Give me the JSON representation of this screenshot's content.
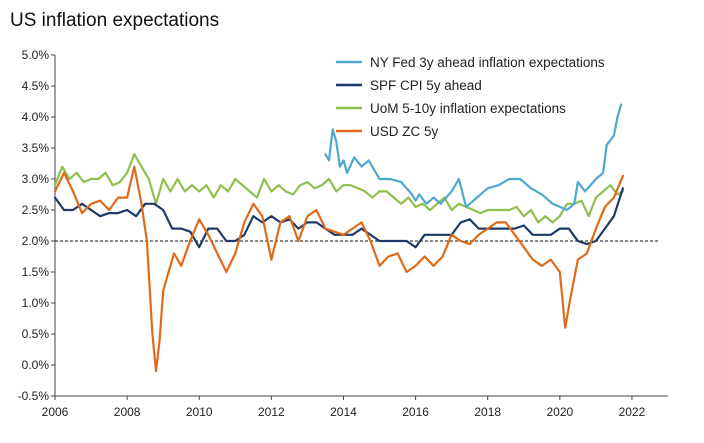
{
  "chart_data": {
    "type": "line",
    "title": "US inflation expectations",
    "xlabel": "",
    "ylabel": "",
    "xlim": [
      2006,
      2023
    ],
    "ylim": [
      -0.5,
      5.0
    ],
    "x_ticks": [
      2006,
      2008,
      2010,
      2012,
      2014,
      2016,
      2018,
      2020,
      2022
    ],
    "y_ticks": [
      "-0.5%",
      "0.0%",
      "0.5%",
      "1.0%",
      "1.5%",
      "2.0%",
      "2.5%",
      "3.0%",
      "3.5%",
      "4.0%",
      "4.5%",
      "5.0%"
    ],
    "reference_line": 2.0,
    "grid": false,
    "legend_position": "top-right",
    "series": [
      {
        "name": "NY Fed 3y ahead inflation expectations",
        "color": "#4fa8cf",
        "x": [
          2013.5,
          2013.6,
          2013.7,
          2013.8,
          2013.9,
          2014.0,
          2014.1,
          2014.3,
          2014.5,
          2014.7,
          2015.0,
          2015.3,
          2015.6,
          2015.9,
          2016.0,
          2016.1,
          2016.3,
          2016.5,
          2016.7,
          2017.0,
          2017.2,
          2017.4,
          2017.7,
          2018.0,
          2018.3,
          2018.6,
          2018.9,
          2019.2,
          2019.5,
          2019.8,
          2020.0,
          2020.2,
          2020.4,
          2020.5,
          2020.7,
          2021.0,
          2021.2,
          2021.3,
          2021.5,
          2021.6,
          2021.7
        ],
        "y": [
          3.4,
          3.3,
          3.8,
          3.6,
          3.2,
          3.3,
          3.1,
          3.35,
          3.2,
          3.3,
          3.0,
          3.0,
          2.95,
          2.75,
          2.65,
          2.75,
          2.6,
          2.7,
          2.6,
          2.8,
          3.0,
          2.55,
          2.7,
          2.85,
          2.9,
          3.0,
          3.0,
          2.85,
          2.75,
          2.6,
          2.55,
          2.5,
          2.6,
          2.95,
          2.8,
          3.0,
          3.1,
          3.55,
          3.7,
          4.0,
          4.2
        ]
      },
      {
        "name": "SPF CPI 5y ahead",
        "color": "#1f3a68",
        "x": [
          2006.0,
          2006.25,
          2006.5,
          2006.75,
          2007.0,
          2007.25,
          2007.5,
          2007.75,
          2008.0,
          2008.25,
          2008.5,
          2008.75,
          2009.0,
          2009.25,
          2009.5,
          2009.75,
          2010.0,
          2010.25,
          2010.5,
          2010.75,
          2011.0,
          2011.25,
          2011.5,
          2011.75,
          2012.0,
          2012.25,
          2012.5,
          2012.75,
          2013.0,
          2013.25,
          2013.5,
          2013.75,
          2014.0,
          2014.25,
          2014.5,
          2014.75,
          2015.0,
          2015.25,
          2015.5,
          2015.75,
          2016.0,
          2016.25,
          2016.5,
          2016.75,
          2017.0,
          2017.25,
          2017.5,
          2017.75,
          2018.0,
          2018.25,
          2018.5,
          2018.75,
          2019.0,
          2019.25,
          2019.5,
          2019.75,
          2020.0,
          2020.25,
          2020.5,
          2020.75,
          2021.0,
          2021.25,
          2021.5,
          2021.75
        ],
        "y": [
          2.7,
          2.5,
          2.5,
          2.6,
          2.5,
          2.4,
          2.45,
          2.45,
          2.5,
          2.4,
          2.6,
          2.6,
          2.5,
          2.2,
          2.2,
          2.15,
          1.9,
          2.2,
          2.2,
          2.0,
          2.0,
          2.1,
          2.4,
          2.3,
          2.4,
          2.3,
          2.35,
          2.2,
          2.3,
          2.3,
          2.2,
          2.1,
          2.1,
          2.1,
          2.2,
          2.1,
          2.0,
          2.0,
          2.0,
          2.0,
          1.9,
          2.1,
          2.1,
          2.1,
          2.1,
          2.3,
          2.35,
          2.2,
          2.2,
          2.2,
          2.2,
          2.2,
          2.25,
          2.1,
          2.1,
          2.1,
          2.2,
          2.2,
          2.0,
          1.95,
          2.0,
          2.2,
          2.4,
          2.85
        ]
      },
      {
        "name": "UoM 5-10y inflation expectations",
        "color": "#8fbf4e",
        "x": [
          2006.0,
          2006.2,
          2006.4,
          2006.6,
          2006.8,
          2007.0,
          2007.2,
          2007.4,
          2007.6,
          2007.8,
          2008.0,
          2008.2,
          2008.4,
          2008.6,
          2008.8,
          2009.0,
          2009.2,
          2009.4,
          2009.6,
          2009.8,
          2010.0,
          2010.2,
          2010.4,
          2010.6,
          2010.8,
          2011.0,
          2011.2,
          2011.4,
          2011.6,
          2011.8,
          2012.0,
          2012.2,
          2012.4,
          2012.6,
          2012.8,
          2013.0,
          2013.2,
          2013.4,
          2013.6,
          2013.8,
          2014.0,
          2014.2,
          2014.4,
          2014.6,
          2014.8,
          2015.0,
          2015.2,
          2015.4,
          2015.6,
          2015.8,
          2016.0,
          2016.2,
          2016.4,
          2016.6,
          2016.8,
          2017.0,
          2017.2,
          2017.4,
          2017.6,
          2017.8,
          2018.0,
          2018.2,
          2018.4,
          2018.6,
          2018.8,
          2019.0,
          2019.2,
          2019.4,
          2019.6,
          2019.8,
          2020.0,
          2020.2,
          2020.4,
          2020.6,
          2020.8,
          2021.0,
          2021.2,
          2021.4,
          2021.6,
          2021.75
        ],
        "y": [
          2.9,
          3.2,
          3.0,
          3.1,
          2.95,
          3.0,
          3.0,
          3.1,
          2.9,
          2.95,
          3.1,
          3.4,
          3.2,
          3.0,
          2.6,
          3.0,
          2.8,
          3.0,
          2.8,
          2.9,
          2.8,
          2.9,
          2.7,
          2.9,
          2.8,
          3.0,
          2.9,
          2.8,
          2.7,
          3.0,
          2.8,
          2.9,
          2.8,
          2.75,
          2.9,
          2.95,
          2.85,
          2.9,
          3.0,
          2.8,
          2.9,
          2.9,
          2.85,
          2.8,
          2.7,
          2.8,
          2.8,
          2.7,
          2.6,
          2.7,
          2.55,
          2.6,
          2.5,
          2.6,
          2.7,
          2.5,
          2.6,
          2.55,
          2.5,
          2.45,
          2.5,
          2.5,
          2.5,
          2.5,
          2.55,
          2.4,
          2.5,
          2.3,
          2.4,
          2.3,
          2.4,
          2.6,
          2.6,
          2.65,
          2.4,
          2.7,
          2.8,
          2.9,
          2.75,
          2.8
        ]
      },
      {
        "name": "USD ZC 5y",
        "color": "#e06a1a",
        "x": [
          2006.0,
          2006.25,
          2006.5,
          2006.75,
          2007.0,
          2007.25,
          2007.5,
          2007.75,
          2008.0,
          2008.2,
          2008.4,
          2008.55,
          2008.7,
          2008.8,
          2008.9,
          2009.0,
          2009.15,
          2009.3,
          2009.5,
          2009.75,
          2010.0,
          2010.25,
          2010.5,
          2010.75,
          2011.0,
          2011.25,
          2011.5,
          2011.75,
          2012.0,
          2012.25,
          2012.5,
          2012.75,
          2013.0,
          2013.25,
          2013.5,
          2013.75,
          2014.0,
          2014.25,
          2014.5,
          2014.75,
          2015.0,
          2015.25,
          2015.5,
          2015.75,
          2016.0,
          2016.25,
          2016.5,
          2016.75,
          2017.0,
          2017.25,
          2017.5,
          2017.75,
          2018.0,
          2018.25,
          2018.5,
          2018.75,
          2019.0,
          2019.25,
          2019.5,
          2019.75,
          2020.0,
          2020.15,
          2020.3,
          2020.5,
          2020.75,
          2021.0,
          2021.25,
          2021.5,
          2021.75
        ],
        "y": [
          2.8,
          3.1,
          2.8,
          2.45,
          2.6,
          2.65,
          2.5,
          2.7,
          2.7,
          3.2,
          2.6,
          2.0,
          0.5,
          -0.1,
          0.4,
          1.2,
          1.5,
          1.8,
          1.6,
          2.0,
          2.35,
          2.1,
          1.8,
          1.5,
          1.8,
          2.3,
          2.6,
          2.4,
          1.7,
          2.3,
          2.4,
          2.0,
          2.4,
          2.5,
          2.2,
          2.15,
          2.1,
          2.2,
          2.3,
          2.0,
          1.6,
          1.75,
          1.8,
          1.5,
          1.6,
          1.75,
          1.6,
          1.75,
          2.1,
          2.0,
          1.95,
          2.1,
          2.2,
          2.3,
          2.3,
          2.1,
          1.9,
          1.7,
          1.6,
          1.7,
          1.5,
          0.6,
          1.1,
          1.7,
          1.8,
          2.2,
          2.55,
          2.7,
          3.05
        ]
      }
    ]
  }
}
